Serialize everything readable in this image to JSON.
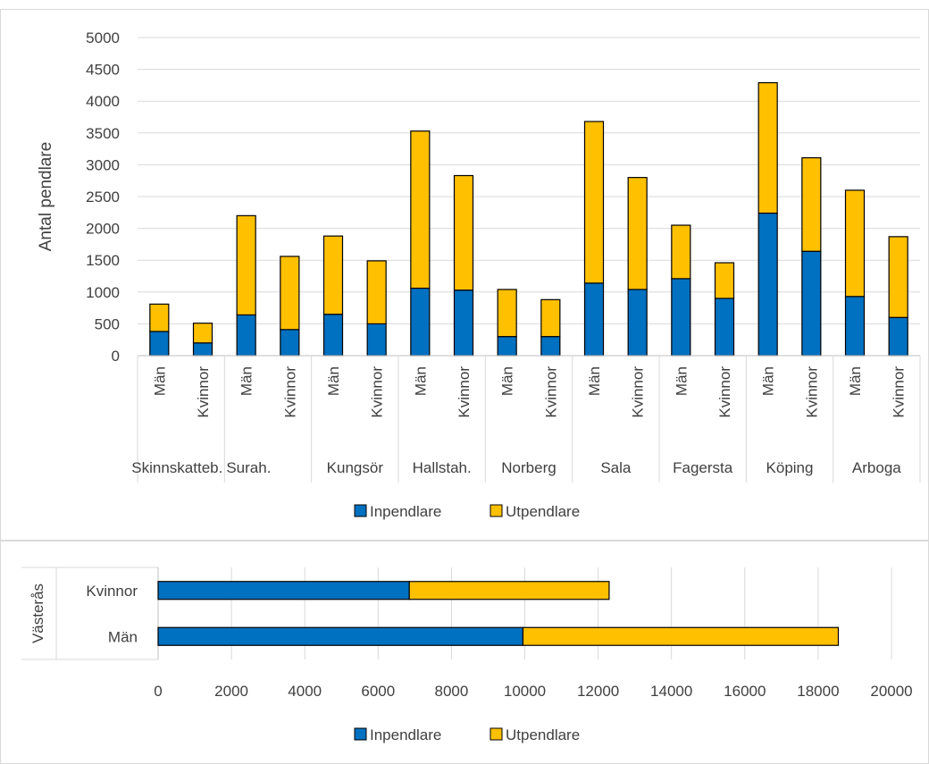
{
  "chart_data": [
    {
      "type": "bar",
      "stacked": true,
      "ylabel": "Antal pendlare",
      "ylim": [
        0,
        5000
      ],
      "yticks": [
        0,
        500,
        1000,
        1500,
        2000,
        2500,
        3000,
        3500,
        4000,
        4500,
        5000
      ],
      "grid": true,
      "legend_position": "bottom",
      "groups": [
        {
          "label": "Skinnskatteb.",
          "categories": [
            "Män",
            "Kvinnor"
          ]
        },
        {
          "label": "Surah.",
          "categories": [
            "Män",
            "Kvinnor"
          ]
        },
        {
          "label": "Kungsör",
          "categories": [
            "Män",
            "Kvinnor"
          ]
        },
        {
          "label": "Hallstah.",
          "categories": [
            "Män",
            "Kvinnor"
          ]
        },
        {
          "label": "Norberg",
          "categories": [
            "Män",
            "Kvinnor"
          ]
        },
        {
          "label": "Sala",
          "categories": [
            "Män",
            "Kvinnor"
          ]
        },
        {
          "label": "Fagersta",
          "categories": [
            "Män",
            "Kvinnor"
          ]
        },
        {
          "label": "Köping",
          "categories": [
            "Män",
            "Kvinnor"
          ]
        },
        {
          "label": "Arboga",
          "categories": [
            "Män",
            "Kvinnor"
          ]
        }
      ],
      "series": [
        {
          "name": "Inpendlare",
          "color": "#0070C0",
          "values": [
            380,
            200,
            640,
            410,
            650,
            500,
            1060,
            1030,
            300,
            300,
            1140,
            1040,
            1210,
            900,
            2240,
            1640,
            930,
            600
          ]
        },
        {
          "name": "Utpendlare",
          "color": "#FFC000",
          "values": [
            430,
            310,
            1560,
            1150,
            1230,
            990,
            2470,
            1800,
            740,
            580,
            2540,
            1760,
            840,
            560,
            2050,
            1470,
            1670,
            1270
          ]
        }
      ]
    },
    {
      "type": "bar",
      "orientation": "horizontal",
      "stacked": true,
      "group_label": "Västerås",
      "categories": [
        "Kvinnor",
        "Män"
      ],
      "xlim": [
        0,
        20000
      ],
      "xticks": [
        0,
        2000,
        4000,
        6000,
        8000,
        10000,
        12000,
        14000,
        16000,
        18000,
        20000
      ],
      "grid": true,
      "legend_position": "bottom",
      "series": [
        {
          "name": "Inpendlare",
          "color": "#0070C0",
          "values": [
            6850,
            9950
          ]
        },
        {
          "name": "Utpendlare",
          "color": "#FFC000",
          "values": [
            5450,
            8600
          ]
        }
      ]
    }
  ]
}
